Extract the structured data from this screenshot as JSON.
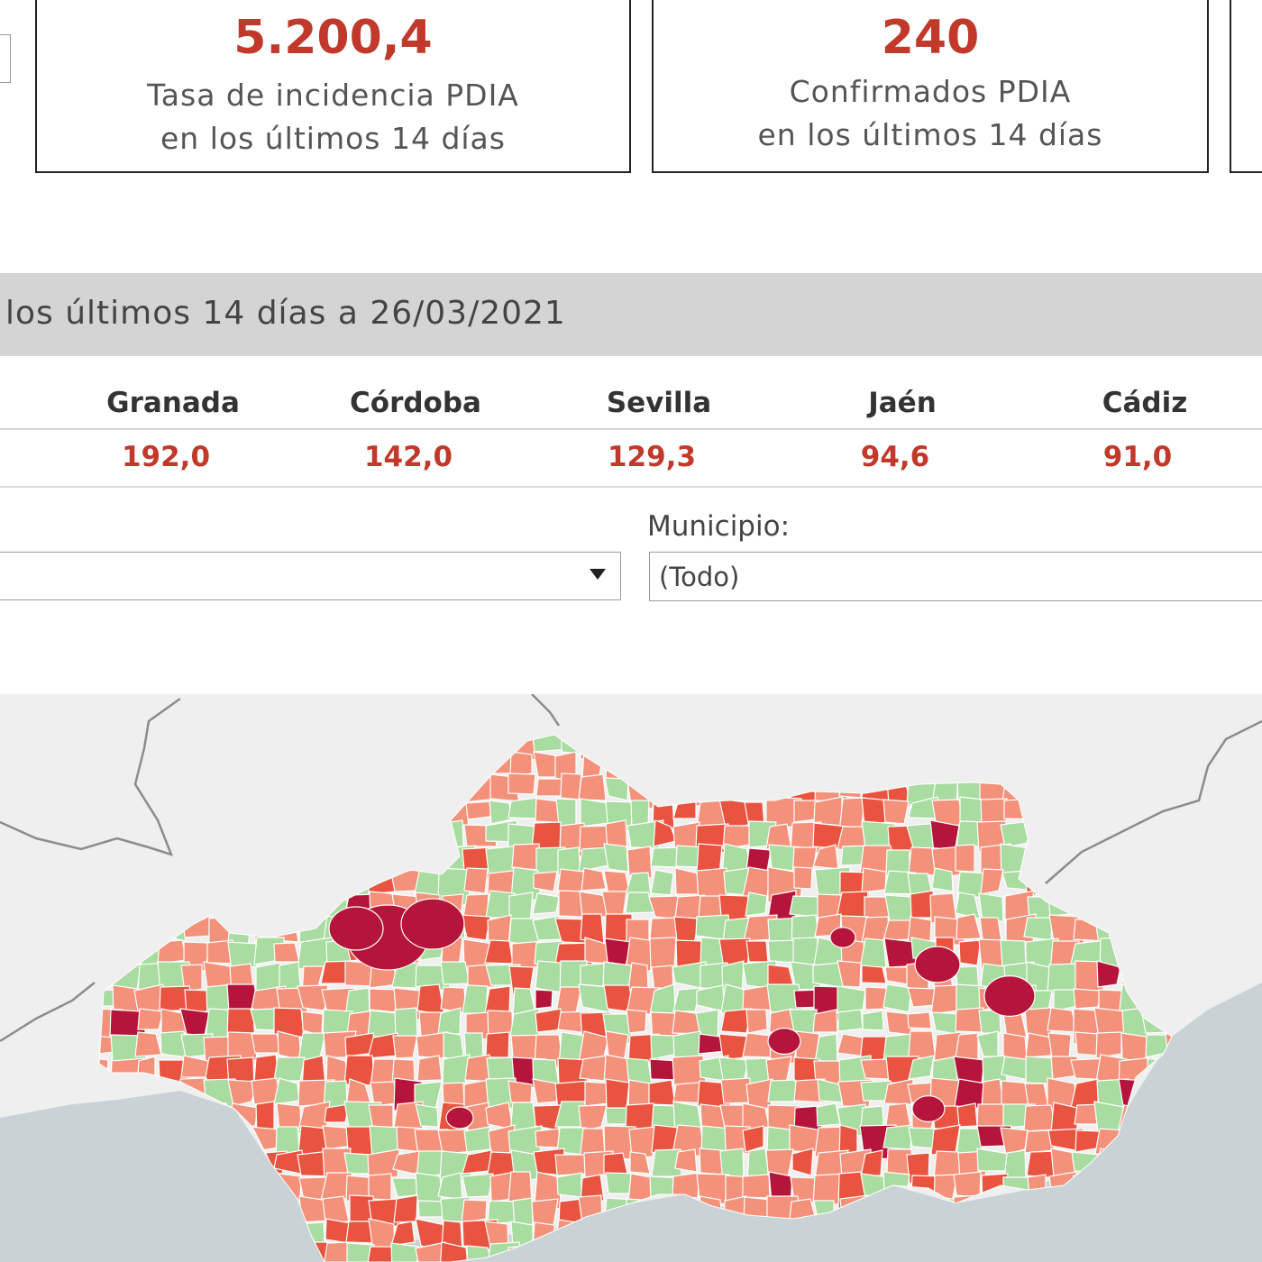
{
  "kpis": [
    {
      "value": "5.200,4",
      "line1": "Tasa de incidencia PDIA",
      "line2": "en los últimos 14 días"
    },
    {
      "value": "240",
      "line1": "Confirmados PDIA",
      "line2": "en los últimos 14 días"
    }
  ],
  "section": {
    "title": "los últimos 14 días a 26/03/2021"
  },
  "provinces": [
    {
      "name": "Granada",
      "value": "192,0"
    },
    {
      "name": "Córdoba",
      "value": "142,0"
    },
    {
      "name": "Sevilla",
      "value": "129,3"
    },
    {
      "name": "Jaén",
      "value": "94,6"
    },
    {
      "name": "Cádiz",
      "value": "91,0"
    }
  ],
  "filters": {
    "municipio_label": "Municipio:",
    "municipio_value": "(Todo)"
  },
  "map": {
    "colors": {
      "sea": "#c9d3d6",
      "land": "#efefef",
      "low": "#a8dca0",
      "medium": "#f4917a",
      "high": "#e8543f",
      "very_high": "#b5153a",
      "border": "#ffffff"
    }
  }
}
